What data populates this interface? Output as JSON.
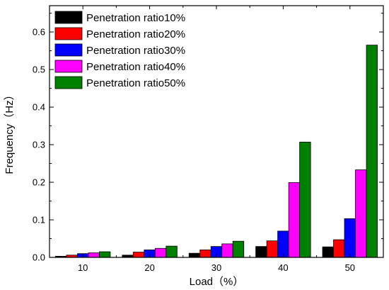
{
  "chart_data": {
    "type": "bar",
    "title": "",
    "xlabel": "Load（%）",
    "ylabel": "Frequency（Hz）",
    "categories": [
      "10",
      "20",
      "30",
      "40",
      "50"
    ],
    "ylim": [
      0,
      0.67
    ],
    "yticks": [
      "0.0",
      "0.1",
      "0.2",
      "0.3",
      "0.4",
      "0.5",
      "0.6"
    ],
    "grid": false,
    "legend_position": "top-left",
    "series": [
      {
        "name": "Penetration ratio10%",
        "color": "#000000",
        "values": [
          0.003,
          0.006,
          0.011,
          0.029,
          0.028
        ]
      },
      {
        "name": "Penetration ratio20%",
        "color": "#ff0000",
        "values": [
          0.006,
          0.014,
          0.02,
          0.044,
          0.047
        ]
      },
      {
        "name": "Penetration ratio30%",
        "color": "#0000ff",
        "values": [
          0.01,
          0.02,
          0.029,
          0.07,
          0.103
        ]
      },
      {
        "name": "Penetration ratio40%",
        "color": "#ff00ff",
        "values": [
          0.012,
          0.024,
          0.036,
          0.199,
          0.233
        ]
      },
      {
        "name": "Penetration ratio50%",
        "color": "#008000",
        "values": [
          0.015,
          0.03,
          0.043,
          0.307,
          0.565
        ]
      }
    ]
  }
}
